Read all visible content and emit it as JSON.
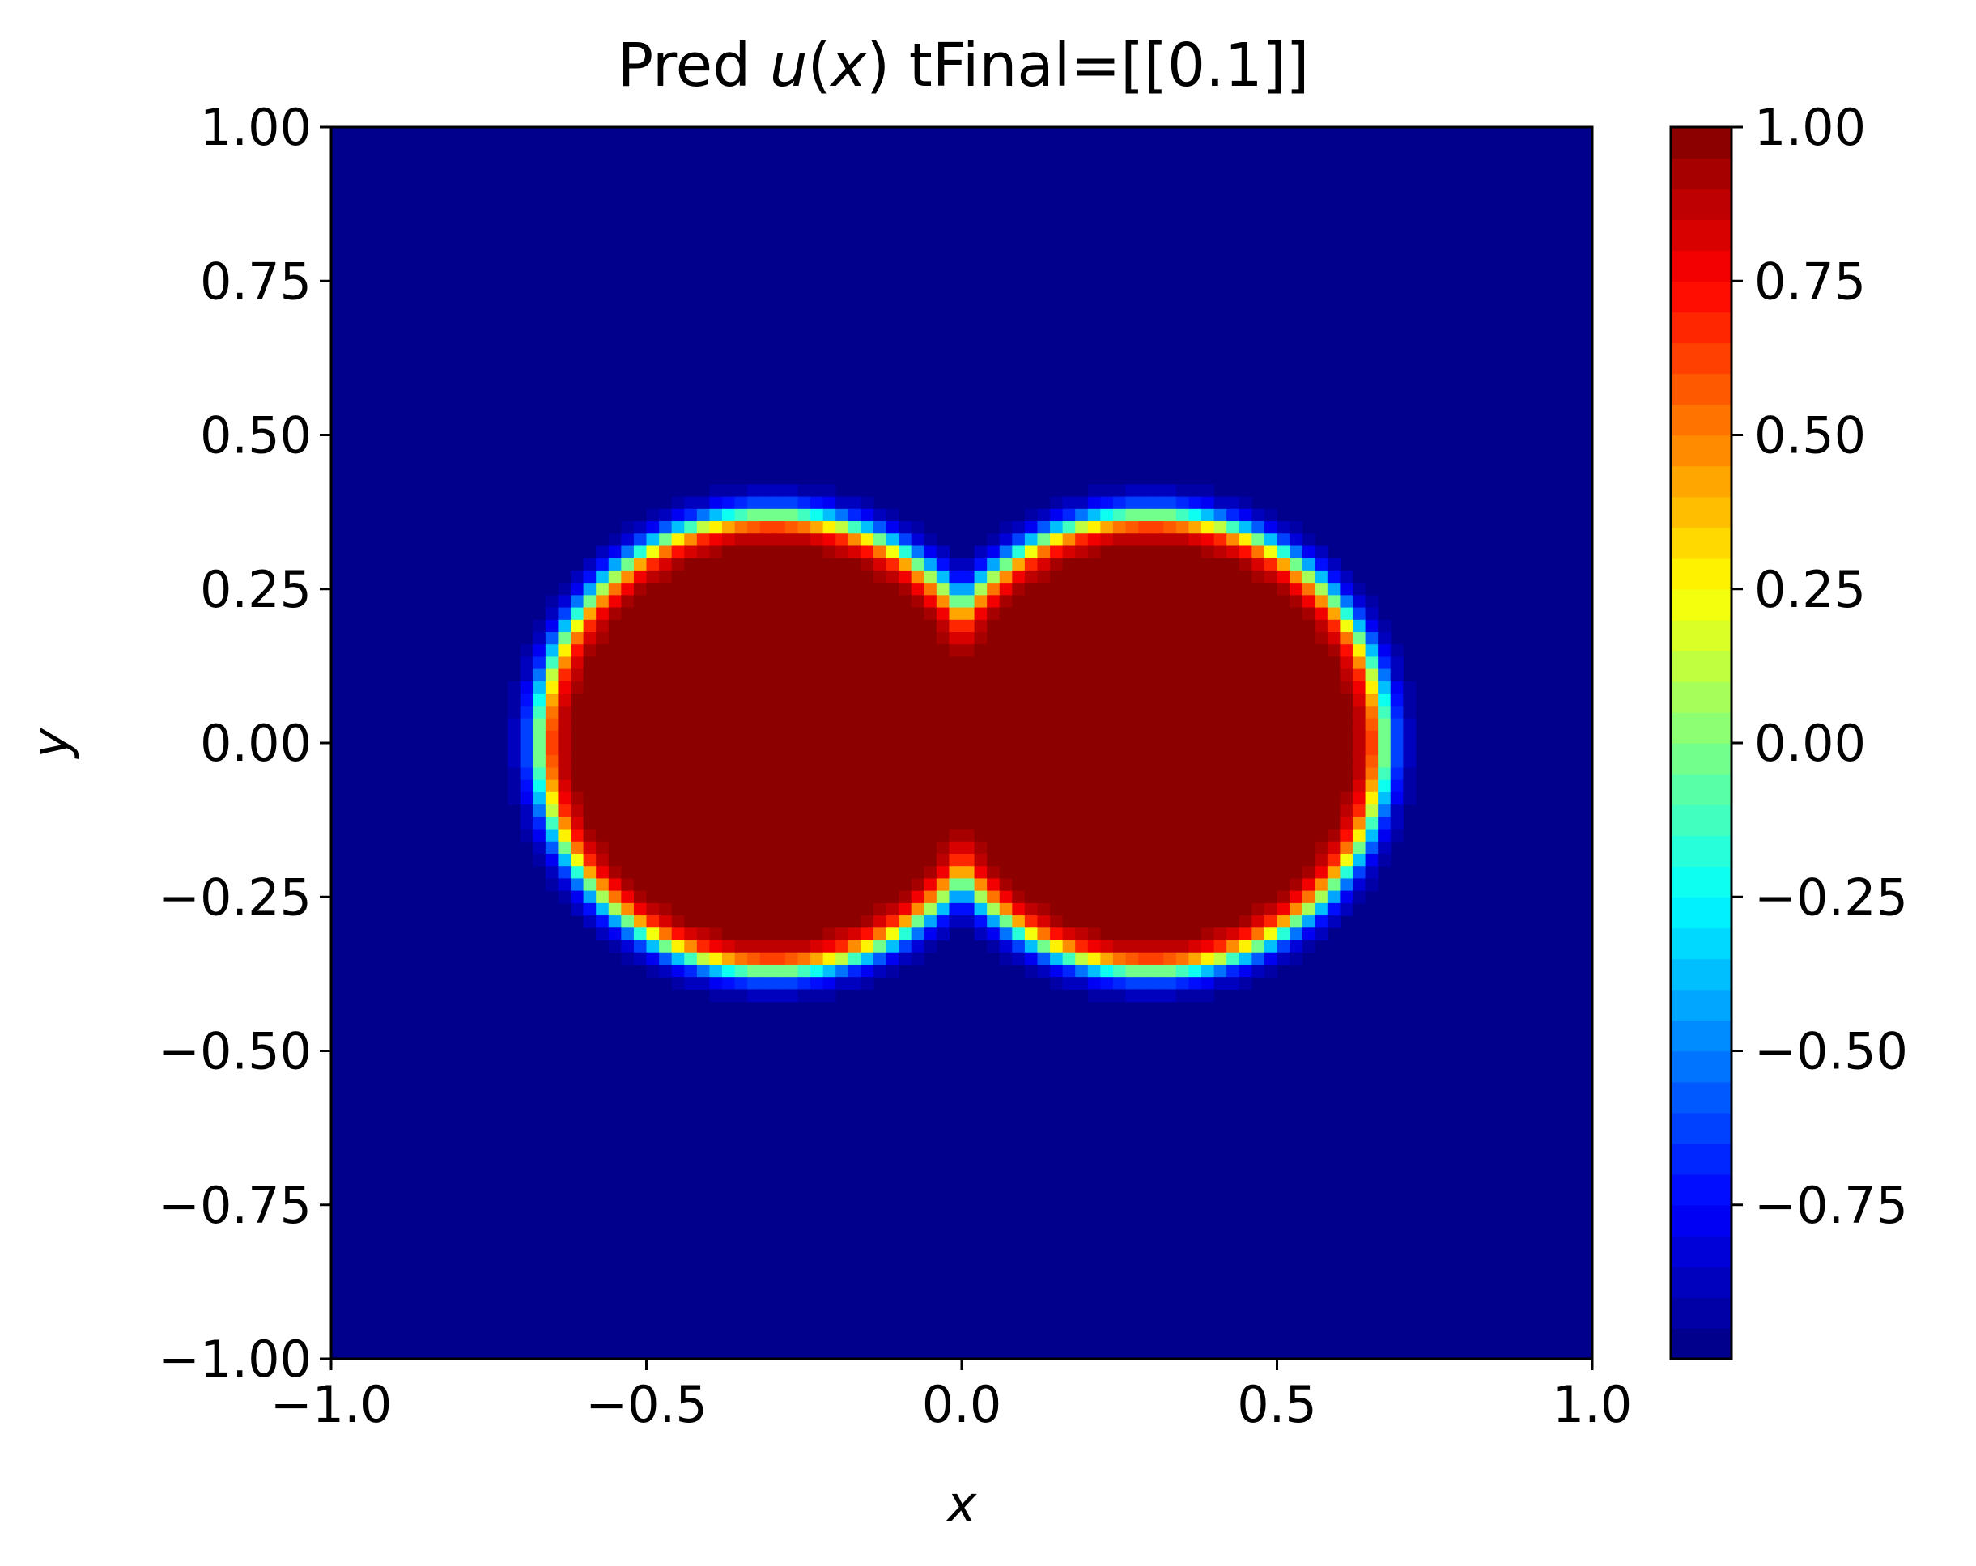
{
  "chart_data": {
    "type": "heatmap",
    "title": {
      "prefix": "Pred ",
      "var": "u",
      "arg_open": "(",
      "arg": "x",
      "arg_close": ")",
      "suffix": " tFinal=[[0.1]]"
    },
    "xlabel": "x",
    "ylabel": "y",
    "xlim": [
      -1.0,
      1.0
    ],
    "ylim": [
      -1.0,
      1.0
    ],
    "x_ticks": [
      {
        "value": -1.0,
        "label": "−1.0"
      },
      {
        "value": -0.5,
        "label": "−0.5"
      },
      {
        "value": 0.0,
        "label": "0.0"
      },
      {
        "value": 0.5,
        "label": "0.5"
      },
      {
        "value": 1.0,
        "label": "1.0"
      }
    ],
    "y_ticks": [
      {
        "value": 1.0,
        "label": "1.00"
      },
      {
        "value": 0.75,
        "label": "0.75"
      },
      {
        "value": 0.5,
        "label": "0.50"
      },
      {
        "value": 0.25,
        "label": "0.25"
      },
      {
        "value": 0.0,
        "label": "0.00"
      },
      {
        "value": -0.25,
        "label": "−0.25"
      },
      {
        "value": -0.5,
        "label": "−0.50"
      },
      {
        "value": -0.75,
        "label": "−0.75"
      },
      {
        "value": -1.0,
        "label": "−1.00"
      }
    ],
    "colorbar": {
      "colormap": "jet",
      "vmin": -1.0,
      "vmax": 1.0,
      "levels": 40,
      "ticks": [
        {
          "value": 1.0,
          "label": "1.00"
        },
        {
          "value": 0.75,
          "label": "0.75"
        },
        {
          "value": 0.5,
          "label": "0.50"
        },
        {
          "value": 0.25,
          "label": "0.25"
        },
        {
          "value": 0.0,
          "label": "0.00"
        },
        {
          "value": -0.25,
          "label": "−0.25"
        },
        {
          "value": -0.5,
          "label": "−0.50"
        },
        {
          "value": -0.75,
          "label": "−0.75"
        }
      ]
    },
    "field": {
      "grid_resolution": 100,
      "background_value": -1.0,
      "interior_value": 1.0,
      "shape": "union of two discs (dumbbell) with smooth tanh interface",
      "discs": [
        {
          "cx": -0.3,
          "cy": 0.0,
          "r": 0.37
        },
        {
          "cx": 0.3,
          "cy": 0.0,
          "r": 0.37
        }
      ],
      "interface_width": 0.028
    }
  }
}
